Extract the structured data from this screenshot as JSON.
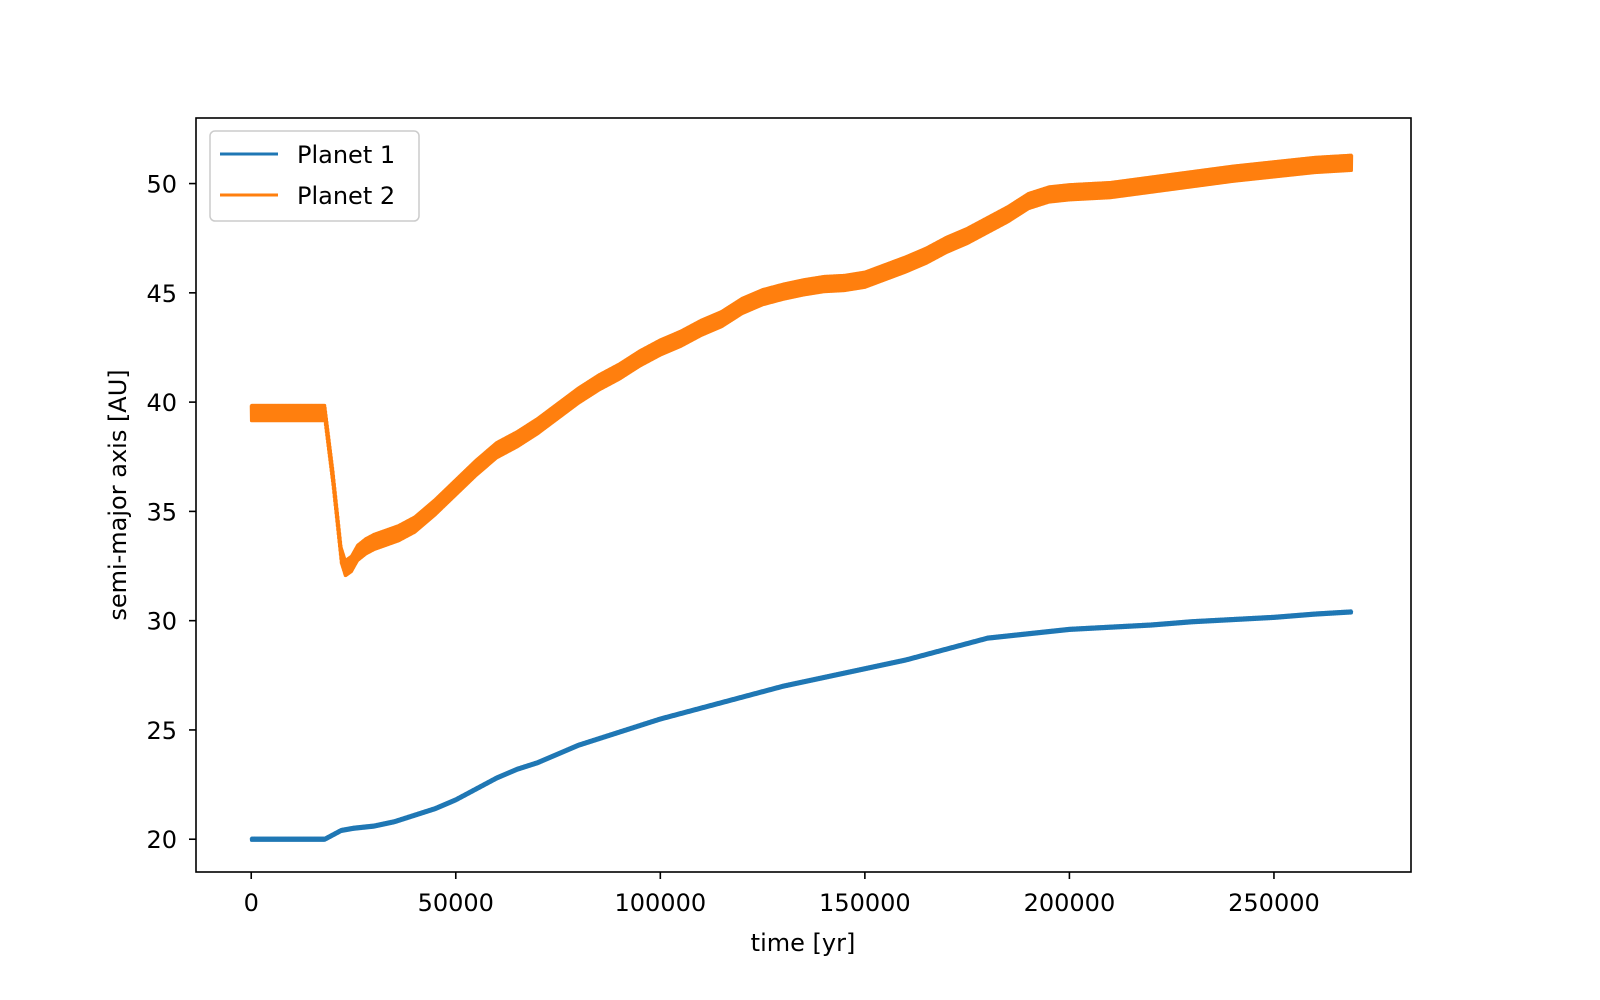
{
  "chart_data": {
    "type": "line",
    "title": "",
    "xlabel": "time [yr]",
    "ylabel": "semi-major axis [AU]",
    "xlim": [
      -13500,
      283500
    ],
    "ylim": [
      18.5,
      53
    ],
    "xticks": [
      0,
      50000,
      100000,
      150000,
      200000,
      250000
    ],
    "xtick_labels": [
      "0",
      "50000",
      "100000",
      "150000",
      "200000",
      "250000"
    ],
    "yticks": [
      20,
      25,
      30,
      35,
      40,
      45,
      50
    ],
    "ytick_labels": [
      "20",
      "25",
      "30",
      "35",
      "40",
      "45",
      "50"
    ],
    "grid": false,
    "legend_position": "upper left",
    "series": [
      {
        "name": "Planet 1",
        "color": "#1f77b4",
        "oscillation_amplitude": 0.05,
        "x": [
          0,
          18000,
          20000,
          22000,
          25000,
          30000,
          35000,
          40000,
          45000,
          50000,
          55000,
          60000,
          65000,
          70000,
          80000,
          90000,
          100000,
          110000,
          120000,
          130000,
          140000,
          150000,
          160000,
          170000,
          180000,
          190000,
          200000,
          210000,
          220000,
          230000,
          240000,
          250000,
          260000,
          269000
        ],
        "y": [
          20.0,
          20.0,
          20.2,
          20.4,
          20.5,
          20.6,
          20.8,
          21.1,
          21.4,
          21.8,
          22.3,
          22.8,
          23.2,
          23.5,
          24.3,
          24.9,
          25.5,
          26.0,
          26.5,
          27.0,
          27.4,
          27.8,
          28.2,
          28.7,
          29.2,
          29.4,
          29.6,
          29.7,
          29.8,
          29.95,
          30.05,
          30.15,
          30.3,
          30.4
        ]
      },
      {
        "name": "Planet 2",
        "color": "#ff7f0e",
        "oscillation_amplitude": 0.35,
        "x": [
          0,
          18000,
          20000,
          22000,
          23000,
          24500,
          26000,
          28000,
          30000,
          33000,
          36000,
          40000,
          45000,
          50000,
          55000,
          60000,
          65000,
          70000,
          75000,
          80000,
          85000,
          90000,
          95000,
          100000,
          105000,
          110000,
          115000,
          120000,
          125000,
          130000,
          135000,
          140000,
          145000,
          150000,
          155000,
          160000,
          165000,
          170000,
          175000,
          180000,
          185000,
          190000,
          195000,
          200000,
          205000,
          210000,
          220000,
          230000,
          240000,
          250000,
          260000,
          269000
        ],
        "y": [
          39.5,
          39.5,
          36.5,
          33.0,
          32.4,
          32.6,
          33.1,
          33.4,
          33.6,
          33.8,
          34.0,
          34.4,
          35.2,
          36.1,
          37.0,
          37.8,
          38.3,
          38.9,
          39.6,
          40.3,
          40.9,
          41.4,
          42.0,
          42.5,
          42.9,
          43.4,
          43.8,
          44.4,
          44.8,
          45.05,
          45.25,
          45.4,
          45.45,
          45.6,
          45.95,
          46.3,
          46.7,
          47.2,
          47.6,
          48.1,
          48.6,
          49.2,
          49.5,
          49.6,
          49.65,
          49.7,
          49.95,
          50.2,
          50.45,
          50.65,
          50.85,
          50.95
        ]
      }
    ]
  }
}
